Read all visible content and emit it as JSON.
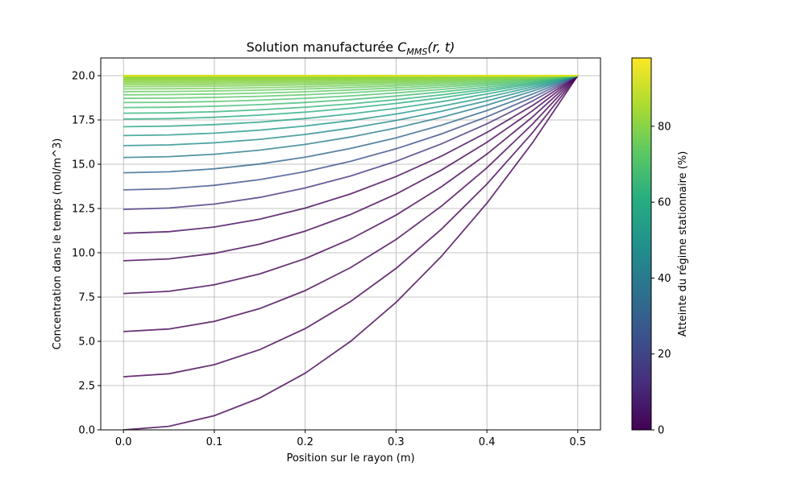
{
  "chart_data": {
    "type": "line",
    "title_main": "Solution manufacturée ",
    "title_var": "C",
    "title_sub": "MMS",
    "title_args": "(r, t)",
    "xlabel": "Position sur le rayon (m)",
    "ylabel": "Concentration dans le temps (mol/m^3)",
    "xlim": [
      -0.025,
      0.525
    ],
    "ylim": [
      0,
      21
    ],
    "xticks": [
      "0.0",
      "0.1",
      "0.2",
      "0.3",
      "0.4",
      "0.5"
    ],
    "yticks": [
      "0.0",
      "2.5",
      "5.0",
      "7.5",
      "10.0",
      "12.5",
      "15.0",
      "17.5",
      "20.0"
    ],
    "grid": true,
    "x": [
      0,
      0.05,
      0.1,
      0.15,
      0.2,
      0.25,
      0.3,
      0.35,
      0.4,
      0.45,
      0.5
    ],
    "profile_shape": [
      1,
      0.99,
      0.96,
      0.91,
      0.84,
      0.75,
      0.64,
      0.51,
      0.36,
      0.19,
      0
    ],
    "surface_concentration": 20,
    "center_values": [
      0,
      3.0,
      5.55,
      7.7,
      9.55,
      11.1,
      12.45,
      13.55,
      14.52,
      15.38,
      16.05,
      16.62,
      17.12,
      17.55,
      17.88,
      18.2,
      18.48,
      18.72,
      18.92,
      19.1,
      19.25,
      19.38,
      19.48,
      19.57,
      19.64,
      19.7,
      19.75,
      19.79,
      19.82,
      19.85,
      19.87,
      19.89,
      19.91,
      19.92,
      19.93,
      19.94,
      19.95,
      19.96,
      19.965,
      19.97,
      19.975,
      19.98,
      19.985,
      19.99,
      20.0
    ],
    "colorbar": {
      "label": "Atteinte du régime stationnaire (%)",
      "ticks": [
        "0",
        "20",
        "40",
        "60",
        "80"
      ],
      "range": [
        0,
        98
      ],
      "colormap": "viridis"
    }
  }
}
